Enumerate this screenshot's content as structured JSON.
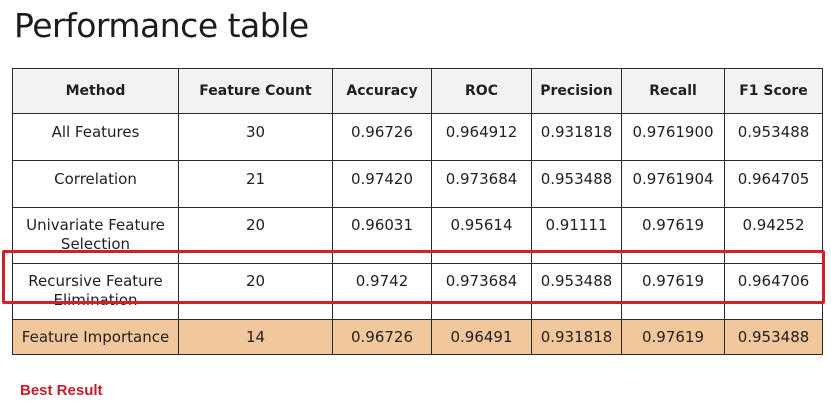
{
  "title": "Performance table",
  "table": {
    "headers": [
      "Method",
      "Feature Count",
      "Accuracy",
      "ROC",
      "Precision",
      "Recall",
      "F1 Score"
    ],
    "rows": [
      [
        "All Features",
        "30",
        "0.96726",
        "0.964912",
        "0.931818",
        "0.9761900",
        "0.953488"
      ],
      [
        "Correlation",
        "21",
        "0.97420",
        "0.973684",
        "0.953488",
        "0.9761904",
        "0.964705"
      ],
      [
        "Univariate Feature Selection",
        "20",
        "0.96031",
        "0.95614",
        "0.91111",
        "0.97619",
        "0.94252"
      ],
      [
        "Recursive Feature Elimination",
        "20",
        "0.9742",
        "0.973684",
        "0.953488",
        "0.97619",
        "0.964706"
      ],
      [
        "Feature Importance",
        "14",
        "0.96726",
        "0.96491",
        "0.931818",
        "0.97619",
        "0.953488"
      ]
    ]
  },
  "highlight_row_color": "#f2c79c",
  "best_box_color": "#d0202a",
  "best_result_label": "Best Result"
}
